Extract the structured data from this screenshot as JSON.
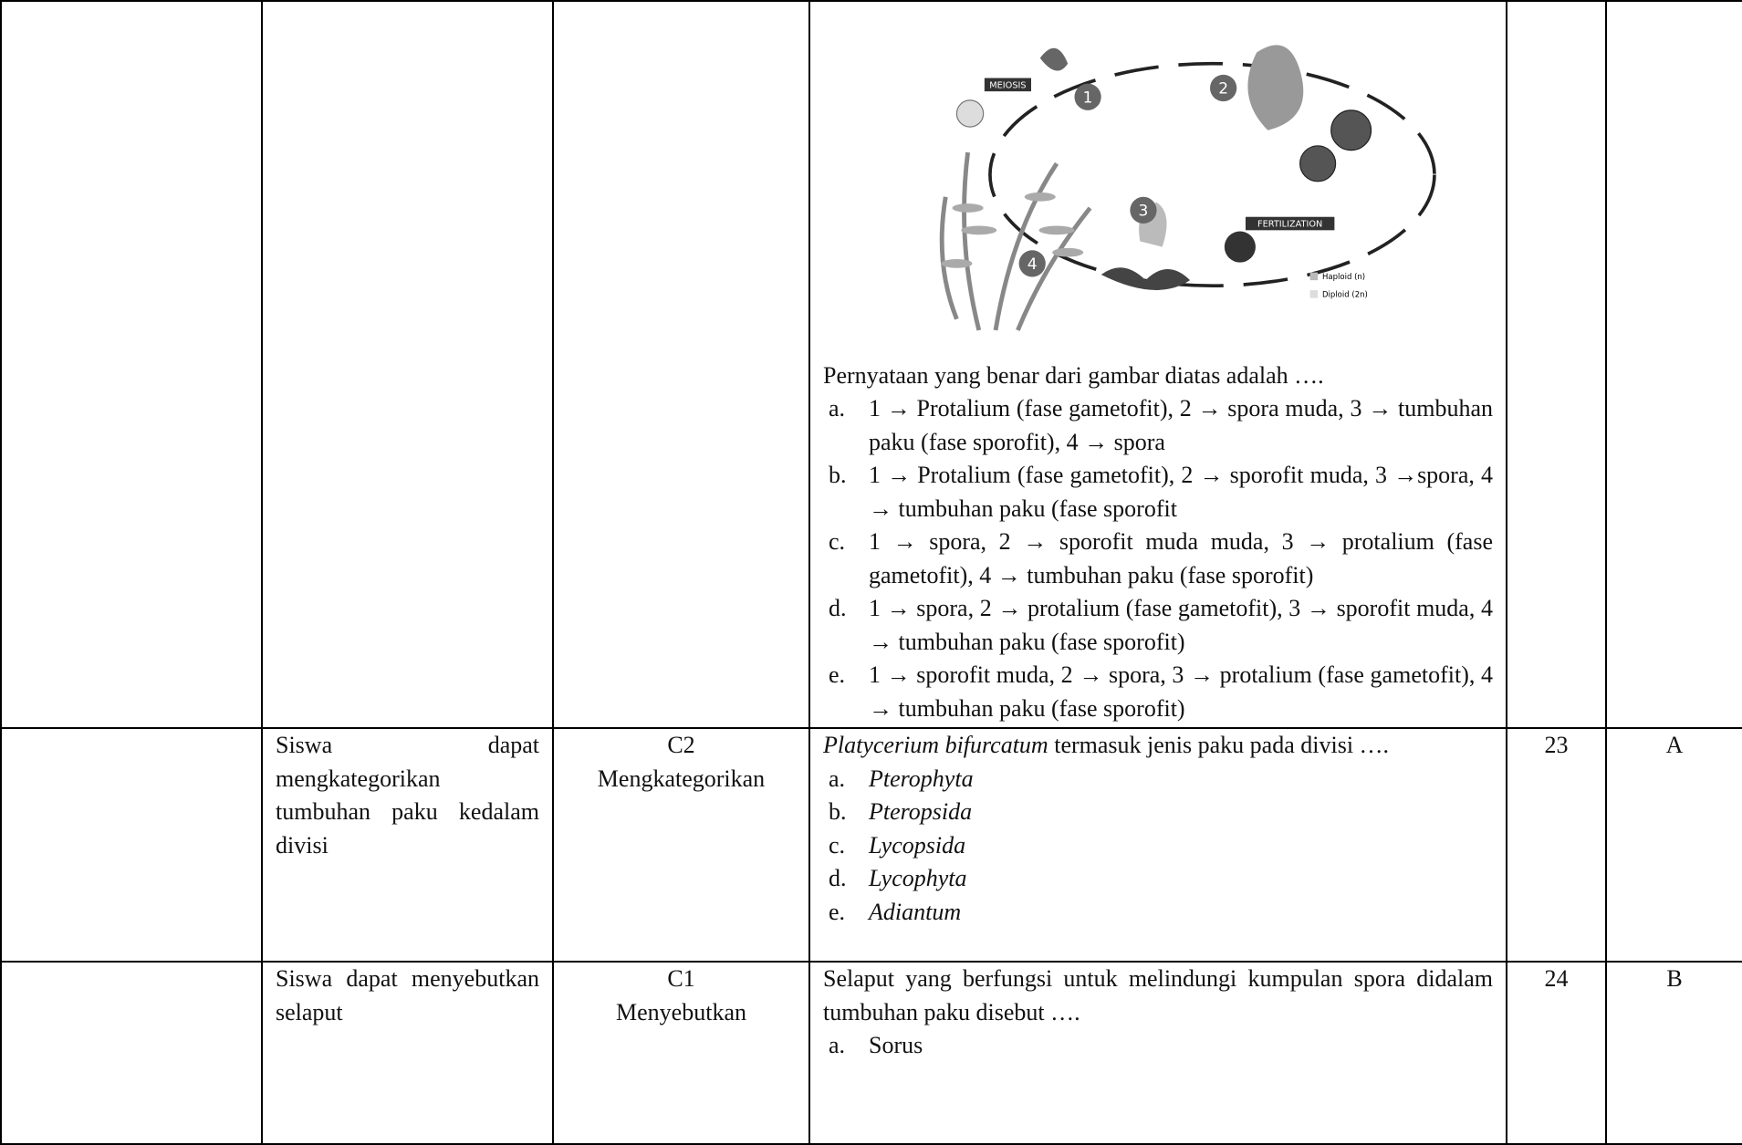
{
  "diagram": {
    "meiosis": "MEIOSIS",
    "fertilization": "FERTILIZATION",
    "numbers": [
      "1",
      "2",
      "3",
      "4"
    ],
    "legend": [
      "Haploid (n)",
      "Diploid (2n)"
    ]
  },
  "rows": [
    {
      "question": "Pernyataan yang benar dari gambar diatas adalah ….",
      "options": [
        {
          "marker": "a.",
          "text": "1 → Protalium (fase gametofit), 2 → spora muda, 3 → tumbuhan paku (fase sporofit), 4 → spora"
        },
        {
          "marker": "b.",
          "text": "1 → Protalium (fase gametofit), 2 → sporofit muda, 3 →spora, 4 → tumbuhan paku (fase sporofit"
        },
        {
          "marker": "c.",
          "text": "1 → spora, 2 → sporofit muda muda, 3 → protalium (fase gametofit), 4 → tumbuhan paku (fase sporofit)"
        },
        {
          "marker": "d.",
          "text": "1 → spora, 2 → protalium (fase gametofit), 3 → sporofit muda, 4 → tumbuhan paku (fase sporofit)"
        },
        {
          "marker": "e.",
          "text": "1 → sporofit muda, 2 → spora, 3 → protalium (fase gametofit), 4 → tumbuhan paku (fase sporofit)"
        }
      ]
    },
    {
      "indicator": "Siswa dapat mengkategorikan tumbuhan paku kedalam divisi",
      "level": "C2",
      "verb": "Mengkategorikan",
      "species": "Platycerium bifurcatum",
      "question": "termasuk jenis paku pada divisi ….",
      "options": [
        {
          "marker": "a.",
          "text": "Pterophyta"
        },
        {
          "marker": "b.",
          "text": "Pteropsida"
        },
        {
          "marker": "c.",
          "text": "Lycopsida"
        },
        {
          "marker": "d.",
          "text": "Lycophyta"
        },
        {
          "marker": "e.",
          "text": "Adiantum"
        }
      ],
      "number": "23",
      "key": "A"
    },
    {
      "indicator": "Siswa dapat menyebutkan selaput",
      "level": "C1",
      "verb": "Menyebutkan",
      "question": "Selaput yang berfungsi untuk melindungi kumpulan spora didalam tumbuhan paku disebut ….",
      "options": [
        {
          "marker": "a.",
          "text": "Sorus"
        }
      ],
      "number": "24",
      "key": "B"
    }
  ]
}
